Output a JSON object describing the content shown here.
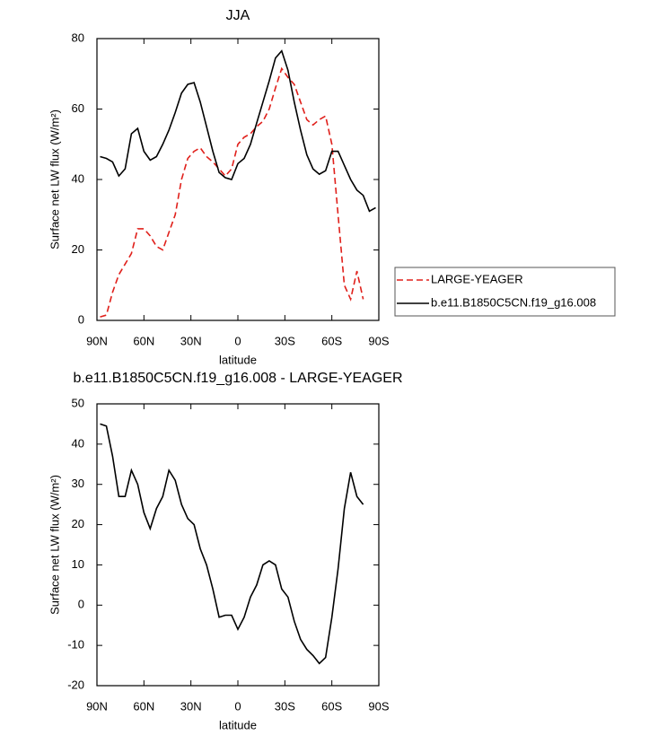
{
  "chart_data": [
    {
      "type": "line",
      "title": "JJA",
      "xlabel": "latitude",
      "ylabel": "Surface net LW flux (W/m²)",
      "x": [
        88,
        84,
        80,
        76,
        72,
        68,
        64,
        60,
        56,
        52,
        48,
        44,
        40,
        36,
        32,
        28,
        24,
        20,
        16,
        12,
        8,
        4,
        0,
        -4,
        -8,
        -12,
        -16,
        -20,
        -24,
        -28,
        -32,
        -36,
        -40,
        -44,
        -48,
        -52,
        -56,
        -60,
        -64,
        -68,
        -72,
        -76,
        -80,
        -84,
        -88
      ],
      "xlim": [
        90,
        -90
      ],
      "xticks": [
        {
          "value": 90,
          "label": "90N"
        },
        {
          "value": 60,
          "label": "60N"
        },
        {
          "value": 30,
          "label": "30N"
        },
        0,
        {
          "value": -30,
          "label": "30S"
        },
        {
          "value": -60,
          "label": "60S"
        },
        {
          "value": -90,
          "label": "90S"
        }
      ],
      "ylim": [
        0,
        80
      ],
      "yticks": [
        0,
        20,
        40,
        60,
        80
      ],
      "legend": "right",
      "series": [
        {
          "name": "LARGE-YEAGER",
          "color": "#e0201b",
          "linestyle": "dashed",
          "values": [
            1,
            1.5,
            8,
            13,
            16,
            19,
            26,
            26,
            24,
            21,
            20,
            25,
            30,
            40,
            46,
            48,
            49,
            46.5,
            45,
            43,
            41,
            43,
            50,
            52,
            53,
            55,
            56.5,
            60,
            66,
            71.5,
            69,
            67,
            62,
            57,
            55.5,
            57,
            58,
            50,
            30,
            10,
            6,
            14,
            6,
            null,
            null
          ]
        },
        {
          "name": "b.e11.B1850C5CN.f19_g16.008",
          "color": "#000000",
          "linestyle": "solid",
          "values": [
            46.5,
            46,
            45,
            41,
            43,
            53,
            54.5,
            48,
            45.5,
            46.5,
            50,
            54,
            59,
            64.5,
            67,
            67.5,
            62,
            55,
            48,
            42,
            40.5,
            40,
            44.5,
            46,
            50,
            56,
            62,
            68,
            74.5,
            76.5,
            71,
            62,
            54,
            47,
            43,
            41.5,
            42.5,
            48,
            48,
            44,
            40,
            37,
            35.5,
            31,
            32
          ]
        }
      ]
    },
    {
      "type": "line",
      "title": "b.e11.B1850C5CN.f19_g16.008 - LARGE-YEAGER",
      "xlabel": "latitude",
      "ylabel": "Surface net LW flux (W/m²)",
      "x": [
        88,
        84,
        80,
        76,
        72,
        68,
        64,
        60,
        56,
        52,
        48,
        44,
        40,
        36,
        32,
        28,
        24,
        20,
        16,
        12,
        8,
        4,
        0,
        -4,
        -8,
        -12,
        -16,
        -20,
        -24,
        -28,
        -32,
        -36,
        -40,
        -44,
        -48,
        -52,
        -56,
        -60,
        -64,
        -68,
        -72,
        -76,
        -80,
        -84,
        -88
      ],
      "xlim": [
        90,
        -90
      ],
      "xticks": [
        {
          "value": 90,
          "label": "90N"
        },
        {
          "value": 60,
          "label": "60N"
        },
        {
          "value": 30,
          "label": "30N"
        },
        0,
        {
          "value": -30,
          "label": "30S"
        },
        {
          "value": -60,
          "label": "60S"
        },
        {
          "value": -90,
          "label": "90S"
        }
      ],
      "ylim": [
        -20,
        50
      ],
      "yticks": [
        -20,
        -10,
        0,
        10,
        20,
        30,
        40,
        50
      ],
      "series": [
        {
          "color": "#000000",
          "linestyle": "solid",
          "values": [
            45,
            44.5,
            37,
            27,
            27,
            33.5,
            30,
            23,
            19,
            24,
            27,
            33.5,
            31,
            25,
            21.5,
            20,
            14,
            10,
            4,
            -3,
            -2.5,
            -2.5,
            -6,
            -3,
            2,
            5,
            10,
            11,
            10,
            4,
            2,
            -4,
            -8.5,
            -11,
            -12.5,
            -14.5,
            -13,
            -3,
            9,
            24,
            33,
            27,
            25,
            null,
            null
          ]
        }
      ]
    }
  ]
}
